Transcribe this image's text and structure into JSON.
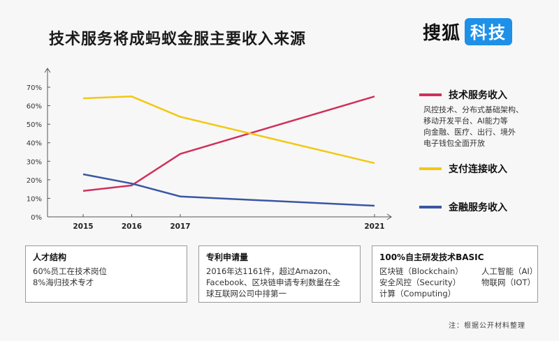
{
  "title": "技术服务将成蚂蚁金服主要收入来源",
  "logo": {
    "main": "搜狐",
    "badge": "科技"
  },
  "chart_data": {
    "type": "line",
    "x": [
      2015,
      2016,
      2017,
      2021
    ],
    "x_ticks": [
      "2015",
      "2016",
      "2017",
      "2021"
    ],
    "y_ticks": [
      "0%",
      "10%",
      "20%",
      "30%",
      "40%",
      "50%",
      "60%",
      "70%"
    ],
    "ylim": [
      0,
      70
    ],
    "grid": false,
    "legend_position": "right",
    "series": [
      {
        "name": "技术服务收入",
        "color": "#d0305a",
        "values": [
          14,
          17,
          34,
          65
        ]
      },
      {
        "name": "支付连接收入",
        "color": "#f2c811",
        "values": [
          64,
          65,
          54,
          29
        ]
      },
      {
        "name": "金融服务收入",
        "color": "#3a56a4",
        "values": [
          23,
          18,
          11,
          6
        ]
      }
    ]
  },
  "legend_note_lines": [
    "风控技术、分布式基础架构、",
    "移动开发平台、AI能力等",
    "向金融、医疗、出行、境外",
    "电子钱包全面开放"
  ],
  "boxes": {
    "talent": {
      "title": "人才结构",
      "lines": [
        "60%员工在技术岗位",
        "8%海归技术专才"
      ]
    },
    "patent": {
      "title": "专利申请量",
      "lines": [
        "2016年达1161件，超过Amazon、",
        "Facebook、区块链申请专利数量在全",
        "球互联网公司中排第一"
      ]
    },
    "basic": {
      "title": "100%自主研发技术BASIC",
      "items": [
        "区块链（Blockchain）",
        "人工智能（AI）",
        "安全风控（Security）",
        "物联网（IOT）",
        "计算（Computing）"
      ]
    }
  },
  "footnote": "注：根据公开材料整理"
}
